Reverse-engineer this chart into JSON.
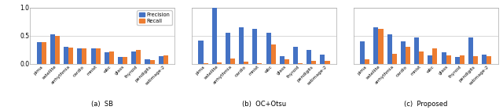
{
  "categories": [
    "pima",
    "satellite",
    "arrhythmia",
    "cardio",
    "mnist",
    "wbc",
    "glass",
    "thyroid",
    "pendigits",
    "satimage-2"
  ],
  "sb": {
    "precision": [
      0.38,
      0.52,
      0.3,
      0.27,
      0.28,
      0.2,
      0.12,
      0.22,
      0.08,
      0.14
    ],
    "recall": [
      0.38,
      0.5,
      0.29,
      0.27,
      0.28,
      0.22,
      0.12,
      0.25,
      0.07,
      0.15
    ]
  },
  "oc_otsu": {
    "precision": [
      0.42,
      1.0,
      0.55,
      0.65,
      0.62,
      0.55,
      0.14,
      0.3,
      0.25,
      0.17
    ],
    "recall": [
      0.01,
      0.02,
      0.1,
      0.04,
      0.01,
      0.35,
      0.08,
      0.01,
      0.05,
      0.05
    ]
  },
  "proposed": {
    "precision": [
      0.4,
      0.65,
      0.52,
      0.4,
      0.47,
      0.15,
      0.2,
      0.12,
      0.47,
      0.17
    ],
    "recall": [
      0.08,
      0.62,
      0.18,
      0.3,
      0.22,
      0.28,
      0.15,
      0.15,
      0.13,
      0.14
    ]
  },
  "blue_color": "#4472C4",
  "orange_color": "#ED7D31",
  "subtitles": [
    "(a)  SB",
    "(b)  OC+Otsu",
    "(c)  Proposed"
  ],
  "ylim": [
    0.0,
    1.0
  ],
  "yticks": [
    0.0,
    0.5,
    1.0
  ],
  "bar_width": 0.35,
  "legend_labels": [
    "Precision",
    "Recall"
  ],
  "figure_bgcolor": "#ffffff",
  "axes_bgcolor": "#ffffff",
  "grid_color": "#c8c8c8",
  "tick_fontsize": 4.2,
  "label_fontsize": 5.5,
  "subtitle_fontsize": 6.0
}
